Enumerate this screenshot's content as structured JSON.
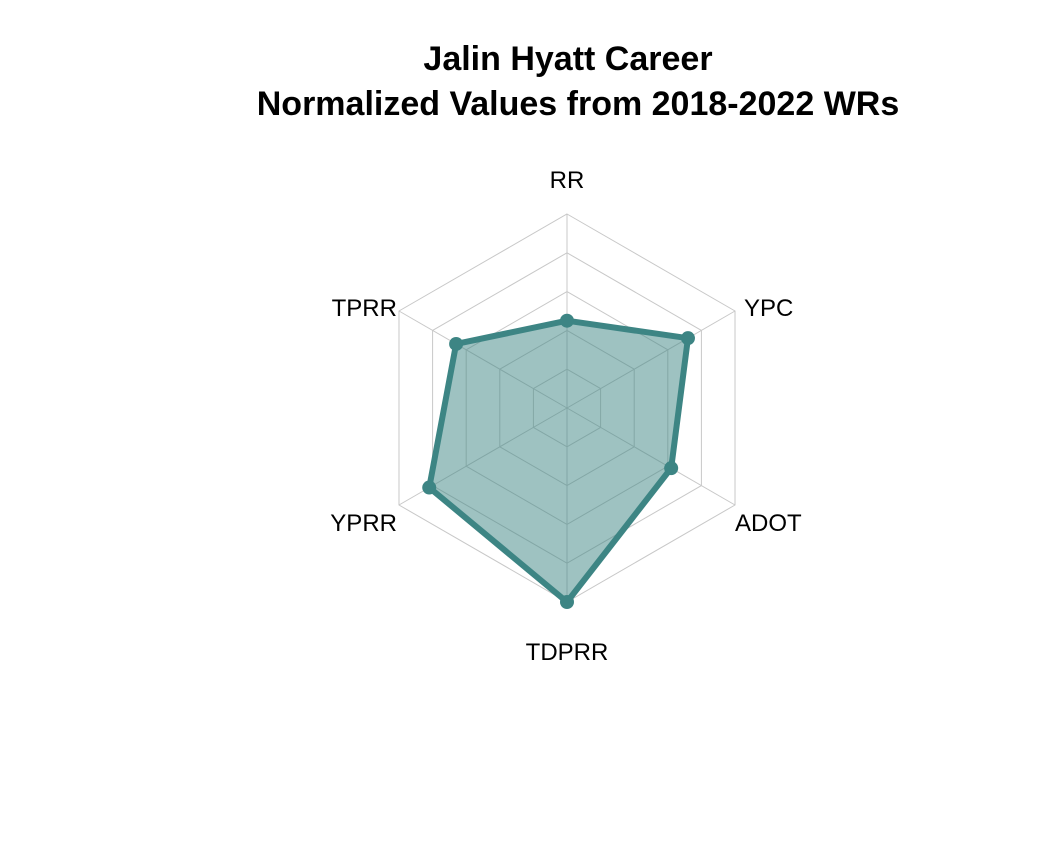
{
  "chart_data": {
    "type": "radar",
    "title": [
      "Jalin Hyatt Career",
      "Normalized Values from 2018-2022 WRs"
    ],
    "axes": [
      "RR",
      "YPC",
      "ADOT",
      "TDPRR",
      "YPRR",
      "TPRR"
    ],
    "series": [
      {
        "values": [
          0.45,
          0.72,
          0.62,
          1.0,
          0.82,
          0.66
        ]
      }
    ],
    "range": [
      0,
      1
    ],
    "grid_levels": 5,
    "grid": true,
    "colors": {
      "line": "#3d8584",
      "fill": "#3d8584",
      "fill_opacity": 0.5,
      "grid": "#c8c8c8"
    }
  }
}
